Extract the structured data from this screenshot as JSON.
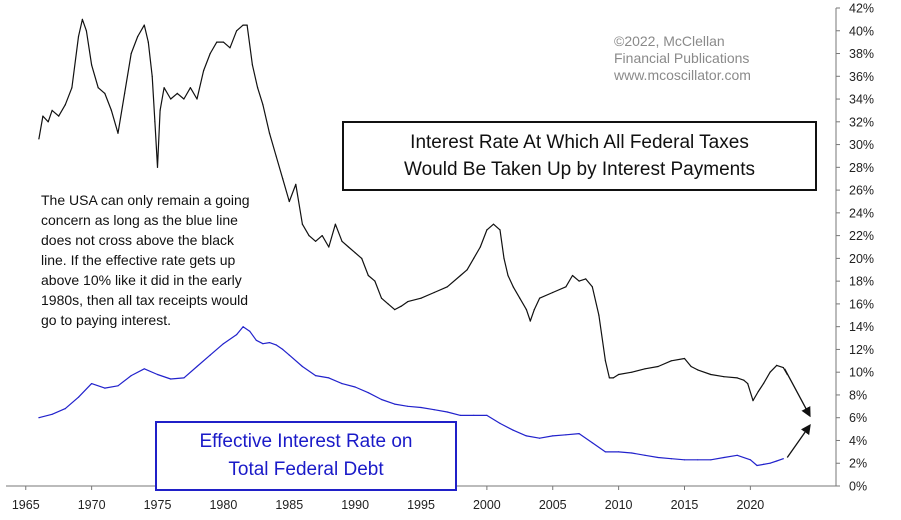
{
  "chart_data": {
    "type": "line",
    "title": "Interest Rate At Which All Federal Taxes Would Be Taken Up by Interest Payments",
    "title_lines": [
      "Interest Rate At Which All Federal Taxes",
      "Would Be Taken Up by Interest Payments"
    ],
    "xlim": [
      1963.5,
      2026.5
    ],
    "ylim": [
      0,
      42
    ],
    "x_ticks": [
      1965,
      1970,
      1975,
      1980,
      1985,
      1990,
      1995,
      2000,
      2005,
      2010,
      2015,
      2020
    ],
    "y_ticks": [
      0,
      2,
      4,
      6,
      8,
      10,
      12,
      14,
      16,
      18,
      20,
      22,
      24,
      26,
      28,
      30,
      32,
      34,
      36,
      38,
      40,
      42
    ],
    "y_tick_suffix": "%",
    "grid": false,
    "series": [
      {
        "name": "Interest Rate At Which All Federal Taxes Would Be Taken Up by Interest Payments",
        "color": "#111111",
        "x": [
          1966.0,
          1966.3,
          1966.7,
          1967.0,
          1967.5,
          1968.0,
          1968.5,
          1969.0,
          1969.3,
          1969.6,
          1970.0,
          1970.5,
          1971.0,
          1971.5,
          1972.0,
          1972.5,
          1973.0,
          1973.5,
          1974.0,
          1974.3,
          1974.6,
          1974.8,
          1975.0,
          1975.2,
          1975.5,
          1976.0,
          1976.5,
          1977.0,
          1977.5,
          1978.0,
          1978.5,
          1979.0,
          1979.5,
          1980.0,
          1980.5,
          1981.0,
          1981.5,
          1981.8,
          1982.2,
          1982.6,
          1983.0,
          1983.5,
          1984.0,
          1984.5,
          1985.0,
          1985.5,
          1986.0,
          1986.5,
          1987.0,
          1987.5,
          1988.0,
          1988.5,
          1989.0,
          1989.5,
          1990.0,
          1990.5,
          1991.0,
          1991.5,
          1992.0,
          1992.5,
          1993.0,
          1993.5,
          1994.0,
          1995.0,
          1996.0,
          1997.0,
          1998.0,
          1998.5,
          1999.0,
          1999.5,
          2000.0,
          2000.5,
          2001.0,
          2001.3,
          2001.6,
          2002.0,
          2002.5,
          2003.0,
          2003.3,
          2003.6,
          2004.0,
          2005.0,
          2006.0,
          2006.5,
          2007.0,
          2007.5,
          2008.0,
          2008.5,
          2009.0,
          2009.3,
          2009.6,
          2010.0,
          2011.0,
          2012.0,
          2013.0,
          2014.0,
          2015.0,
          2015.5,
          2016.0,
          2017.0,
          2018.0,
          2019.0,
          2019.5,
          2019.8,
          2020.2,
          2020.6,
          2021.0,
          2021.5,
          2022.0,
          2022.5,
          2022.8
        ],
        "y": [
          30.5,
          32.5,
          32.0,
          33.0,
          32.5,
          33.5,
          35.0,
          39.5,
          41.0,
          40.0,
          37.0,
          35.0,
          34.5,
          33.0,
          31.0,
          34.5,
          38.0,
          39.5,
          40.5,
          39.0,
          36.0,
          32.0,
          28.0,
          33.0,
          35.0,
          34.0,
          34.5,
          34.0,
          35.0,
          34.0,
          36.5,
          38.0,
          39.0,
          39.0,
          38.5,
          40.0,
          40.5,
          40.5,
          37.0,
          35.0,
          33.5,
          31.0,
          29.0,
          27.0,
          25.0,
          26.5,
          23.0,
          22.0,
          21.5,
          22.0,
          21.0,
          23.0,
          21.5,
          21.0,
          20.5,
          20.0,
          18.5,
          18.0,
          16.5,
          16.0,
          15.5,
          15.8,
          16.2,
          16.5,
          17.0,
          17.5,
          18.5,
          19.0,
          20.0,
          21.0,
          22.5,
          23.0,
          22.5,
          20.0,
          18.5,
          17.5,
          16.5,
          15.5,
          14.5,
          15.5,
          16.5,
          17.0,
          17.5,
          18.5,
          18.0,
          18.2,
          17.5,
          15.0,
          11.0,
          9.5,
          9.5,
          9.8,
          10.0,
          10.3,
          10.5,
          11.0,
          11.2,
          10.5,
          10.2,
          9.8,
          9.6,
          9.5,
          9.3,
          9.0,
          7.5,
          8.3,
          9.0,
          10.0,
          10.6,
          10.4,
          9.8
        ]
      },
      {
        "name": "Effective Interest Rate on Total Federal Debt",
        "color": "#2222cc",
        "x": [
          1966.0,
          1967.0,
          1968.0,
          1969.0,
          1970.0,
          1971.0,
          1972.0,
          1973.0,
          1974.0,
          1975.0,
          1976.0,
          1977.0,
          1978.0,
          1979.0,
          1980.0,
          1981.0,
          1981.5,
          1982.0,
          1982.5,
          1983.0,
          1983.5,
          1984.0,
          1984.5,
          1985.0,
          1986.0,
          1987.0,
          1988.0,
          1989.0,
          1990.0,
          1991.0,
          1992.0,
          1993.0,
          1994.0,
          1995.0,
          1996.0,
          1997.0,
          1998.0,
          1999.0,
          2000.0,
          2001.0,
          2002.0,
          2003.0,
          2004.0,
          2005.0,
          2006.0,
          2007.0,
          2008.0,
          2009.0,
          2010.0,
          2011.0,
          2012.0,
          2013.0,
          2014.0,
          2015.0,
          2016.0,
          2017.0,
          2018.0,
          2019.0,
          2020.0,
          2020.5,
          2021.0,
          2021.5,
          2022.0,
          2022.5
        ],
        "y": [
          6.0,
          6.3,
          6.8,
          7.8,
          9.0,
          8.6,
          8.8,
          9.7,
          10.3,
          9.8,
          9.4,
          9.5,
          10.5,
          11.5,
          12.5,
          13.3,
          14.0,
          13.6,
          12.8,
          12.5,
          12.6,
          12.4,
          12.0,
          11.5,
          10.5,
          9.7,
          9.5,
          9.0,
          8.7,
          8.2,
          7.6,
          7.2,
          7.0,
          6.9,
          6.7,
          6.5,
          6.2,
          6.2,
          6.2,
          5.5,
          4.9,
          4.4,
          4.2,
          4.4,
          4.5,
          4.6,
          3.8,
          3.0,
          3.0,
          2.9,
          2.7,
          2.5,
          2.4,
          2.3,
          2.3,
          2.3,
          2.5,
          2.7,
          2.3,
          1.8,
          1.9,
          2.0,
          2.2,
          2.4
        ]
      }
    ],
    "annotations": [
      {
        "type": "arrow",
        "from": [
          2022.6,
          10.3
        ],
        "to": [
          2024.5,
          6.2
        ],
        "color": "#111111"
      },
      {
        "type": "arrow",
        "from": [
          2022.8,
          2.5
        ],
        "to": [
          2024.5,
          5.3
        ],
        "color": "#111111"
      }
    ]
  },
  "credit_lines": [
    "©2022, McClellan",
    "Financial Publications",
    "www.mcoscillator.com"
  ],
  "note_lines": [
    "The USA can only remain a going",
    "concern as long as the blue line",
    "does not cross above the black",
    "line. If the effective rate gets up",
    "above 10% like it did in the early",
    "1980s, then all tax receipts would",
    "go to paying interest."
  ],
  "blue_label_lines": [
    "Effective Interest Rate on",
    "Total Federal Debt"
  ]
}
